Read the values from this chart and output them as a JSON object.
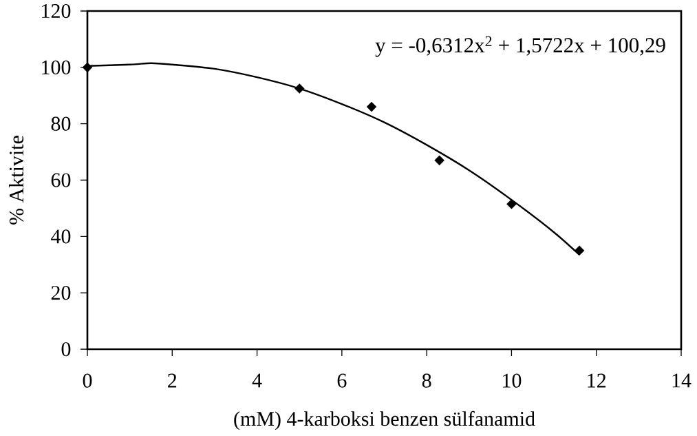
{
  "chart_data": {
    "type": "scatter",
    "xlabel": "(mM) 4-karboksi benzen sülfanamid",
    "ylabel": "% Aktivite",
    "xlim": [
      0,
      14
    ],
    "ylim": [
      0,
      120
    ],
    "xticks": [
      0,
      2,
      4,
      6,
      8,
      10,
      12,
      14
    ],
    "yticks": [
      0,
      20,
      40,
      60,
      80,
      100,
      120
    ],
    "annotations": [
      "y = -0,6312x$^{2}$ + 1,5722x + 100,29"
    ],
    "series": [
      {
        "color": "#000000",
        "marker": "diamond",
        "x": [
          0,
          5,
          6.7,
          8.3,
          10,
          11.6
        ],
        "values": [
          100,
          92.5,
          86,
          67,
          51.5,
          35
        ]
      },
      {
        "type": "line",
        "color": "#000000",
        "marker": "none",
        "line_style": "solid",
        "x": [
          0,
          1,
          1.5,
          2,
          3,
          4,
          5,
          6,
          7,
          8,
          9,
          10,
          11,
          11.6
        ],
        "values": [
          100.5,
          101,
          101.5,
          101,
          99.5,
          96.5,
          92.5,
          87,
          80.5,
          72.5,
          63.5,
          53,
          41.5,
          33.5
        ]
      }
    ]
  }
}
